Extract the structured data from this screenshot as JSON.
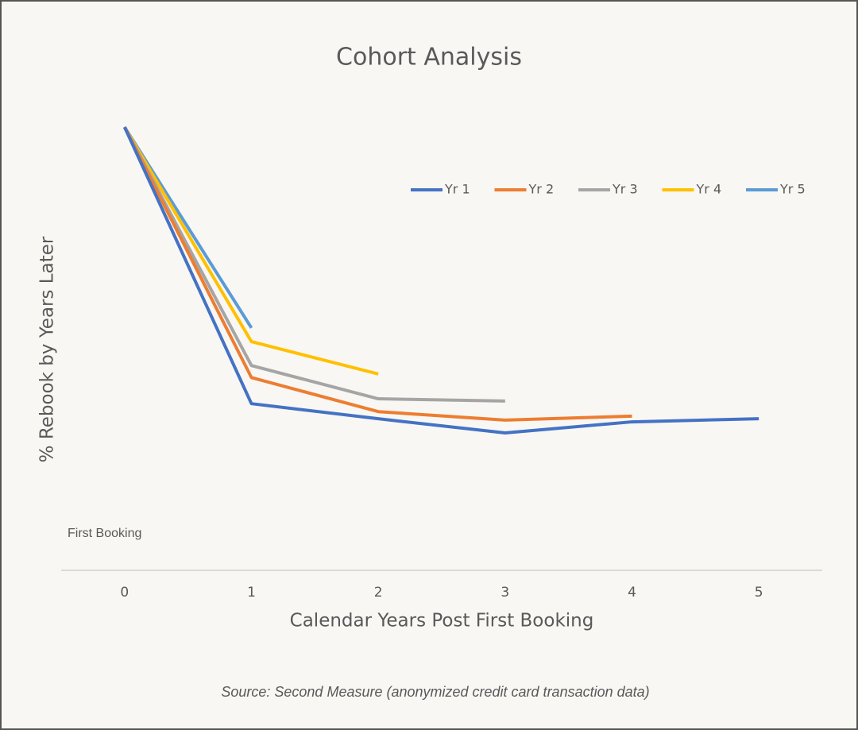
{
  "chart_data": {
    "type": "line",
    "title": "Cohort Analysis",
    "x_label": "Calendar Years Post First Booking",
    "y_label": "% Rebook by Years Later",
    "annotation": "First Booking",
    "source": "Source: Second Measure (anonymized credit card transaction data)",
    "x": [
      0,
      1,
      2,
      3,
      4,
      5
    ],
    "xlim": [
      -0.5,
      5.5
    ],
    "xticks": [
      0,
      1,
      2,
      3,
      4,
      5
    ],
    "ylim": [
      0,
      100
    ],
    "legend": "upper right",
    "series": [
      {
        "name": "Yr 1",
        "color": "#4472c4",
        "values": [
          100,
          37.6,
          34.2,
          31.0,
          33.5,
          34.2
        ]
      },
      {
        "name": "Yr 2",
        "color": "#ed7d31",
        "values": [
          100,
          43.5,
          35.8,
          33.9,
          34.8,
          null
        ]
      },
      {
        "name": "Yr 3",
        "color": "#a5a5a5",
        "values": [
          100,
          46.2,
          38.7,
          38.2,
          null,
          null
        ]
      },
      {
        "name": "Yr 4",
        "color": "#ffc000",
        "values": [
          100,
          51.6,
          44.3,
          null,
          null,
          null
        ]
      },
      {
        "name": "Yr 5",
        "color": "#5b9bd5",
        "values": [
          100,
          54.7,
          null,
          null,
          null,
          null
        ]
      }
    ]
  }
}
